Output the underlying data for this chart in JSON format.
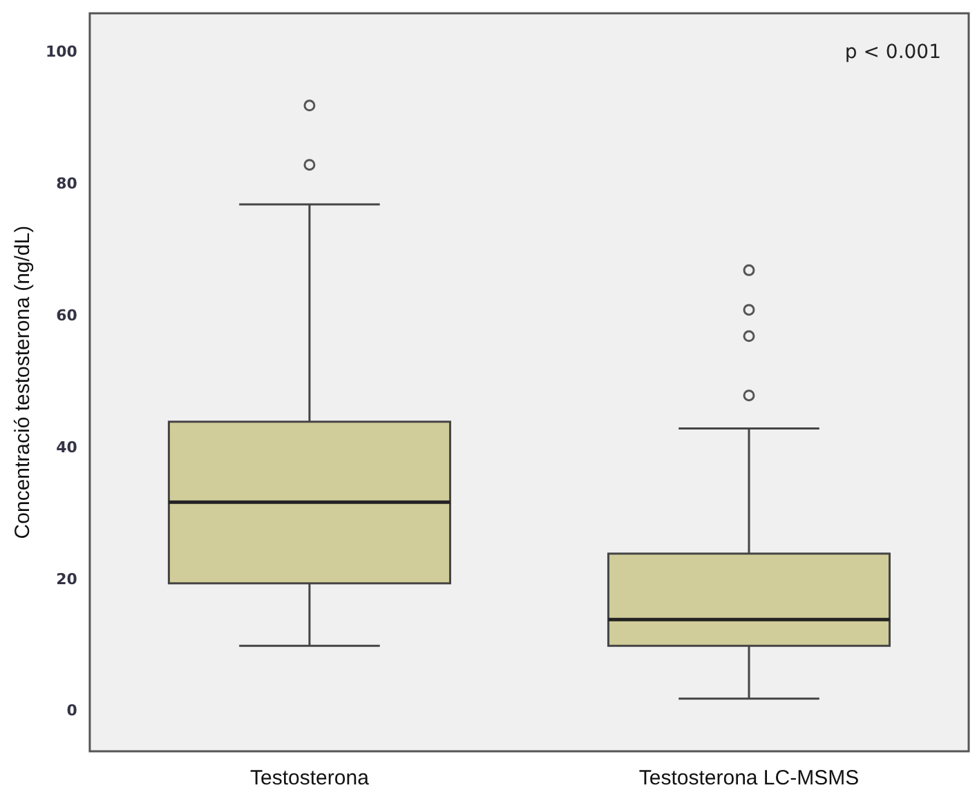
{
  "chart_data": {
    "type": "box",
    "ylabel": "Concentració testosterona (ng/dL)",
    "categories": [
      "Testosterona",
      "Testosterona LC-MSMS"
    ],
    "boxes": [
      {
        "low": 10,
        "q1": 19.5,
        "median": 31.8,
        "q3": 44,
        "high": 77,
        "outliers": [
          83,
          92
        ]
      },
      {
        "low": 2,
        "q1": 10,
        "median": 14,
        "q3": 24,
        "high": 43,
        "outliers": [
          48,
          57,
          61,
          67
        ]
      }
    ],
    "color": "#d1cd9a",
    "ylim": [
      -6,
      106
    ],
    "yticks": [
      0,
      20,
      40,
      60,
      80,
      100
    ],
    "grid": false,
    "legend": false,
    "annotations": [
      "p < 0.001"
    ]
  }
}
